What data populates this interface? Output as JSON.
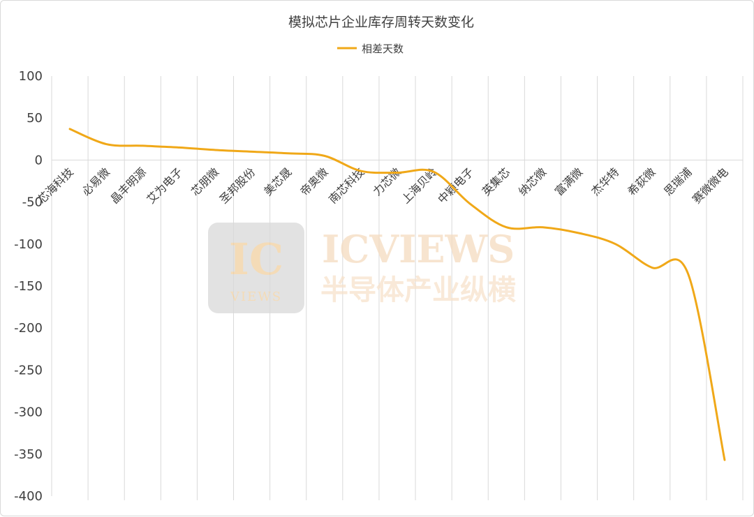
{
  "chart_data": {
    "type": "line",
    "title": "模拟芯片企业库存周转天数变化",
    "xlabel": "",
    "ylabel": "",
    "ylim": [
      -400,
      100
    ],
    "yticks": [
      100,
      50,
      0,
      -50,
      -100,
      -150,
      -200,
      -250,
      -300,
      -350,
      -400
    ],
    "categories": [
      "芯海科技",
      "必易微",
      "晶丰明源",
      "艾为电子",
      "芯朋微",
      "圣邦股份",
      "美芯晟",
      "帝奥微",
      "南芯科技",
      "力芯微",
      "上海贝岭",
      "中颖电子",
      "英集芯",
      "纳芯微",
      "富满微",
      "杰华特",
      "希荻微",
      "思瑞浦",
      "赛微微电"
    ],
    "series": [
      {
        "name": "相差天数",
        "color": "#f0a818",
        "values": [
          37,
          19,
          17,
          15,
          12,
          10,
          8,
          5,
          -13,
          -15,
          -14,
          -52,
          -80,
          -80,
          -87,
          -100,
          -128,
          -136,
          -357
        ]
      }
    ],
    "grid": "vertical",
    "legend": "top"
  },
  "watermark": {
    "logo_main": "IC",
    "logo_sub": "VIEWS",
    "brand": "ICVIEWS",
    "brand_cn": "半导体产业纵横"
  }
}
